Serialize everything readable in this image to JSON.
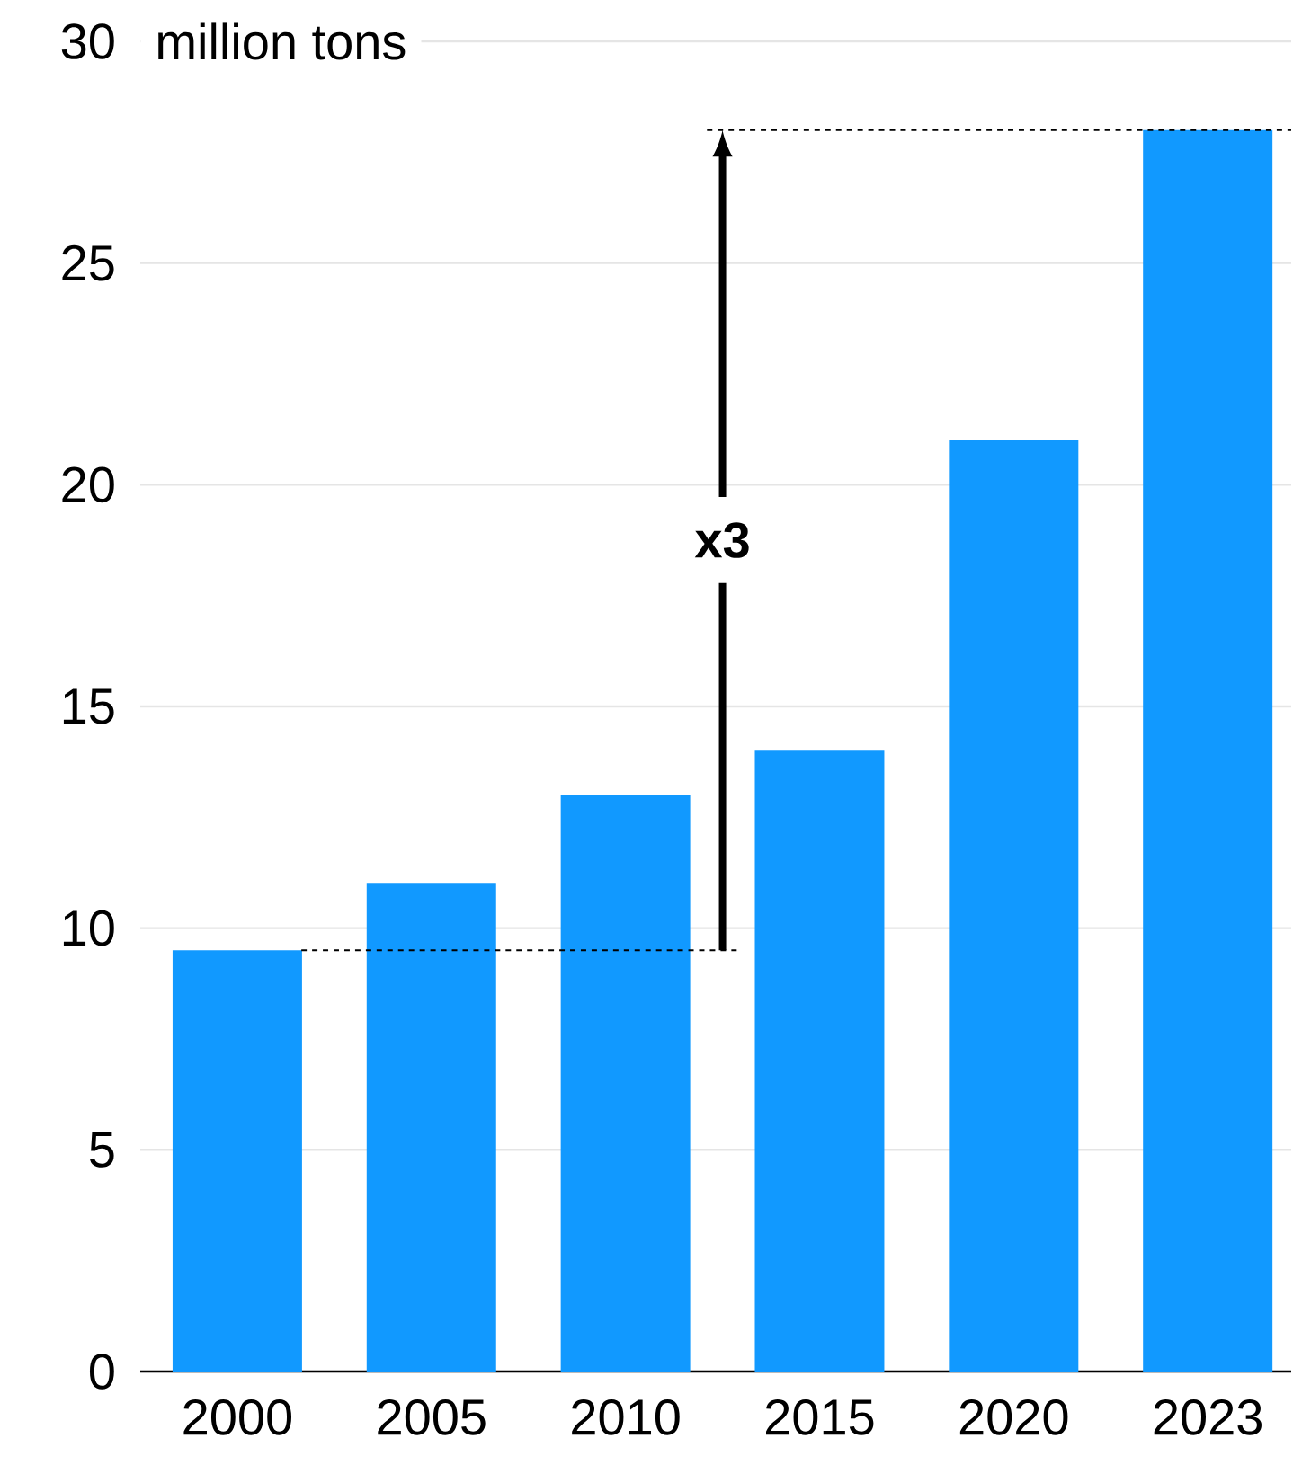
{
  "chart_data": {
    "type": "bar",
    "ylabel": "million tons",
    "categories": [
      "2000",
      "2005",
      "2010",
      "2015",
      "2020",
      "2023"
    ],
    "values": [
      9.5,
      11,
      13,
      14,
      21,
      28
    ],
    "color": "#1199ff",
    "ylim": [
      0,
      30
    ],
    "yticks": [
      0,
      5,
      10,
      15,
      20,
      25,
      30
    ],
    "grid": "y",
    "annotations": [
      "x3"
    ],
    "ref_lines": [
      {
        "axis": "y",
        "value": 9.5,
        "line_style": "dashed",
        "color": "#000000"
      },
      {
        "axis": "y",
        "value": 28,
        "line_style": "dashed",
        "color": "#000000"
      }
    ]
  }
}
